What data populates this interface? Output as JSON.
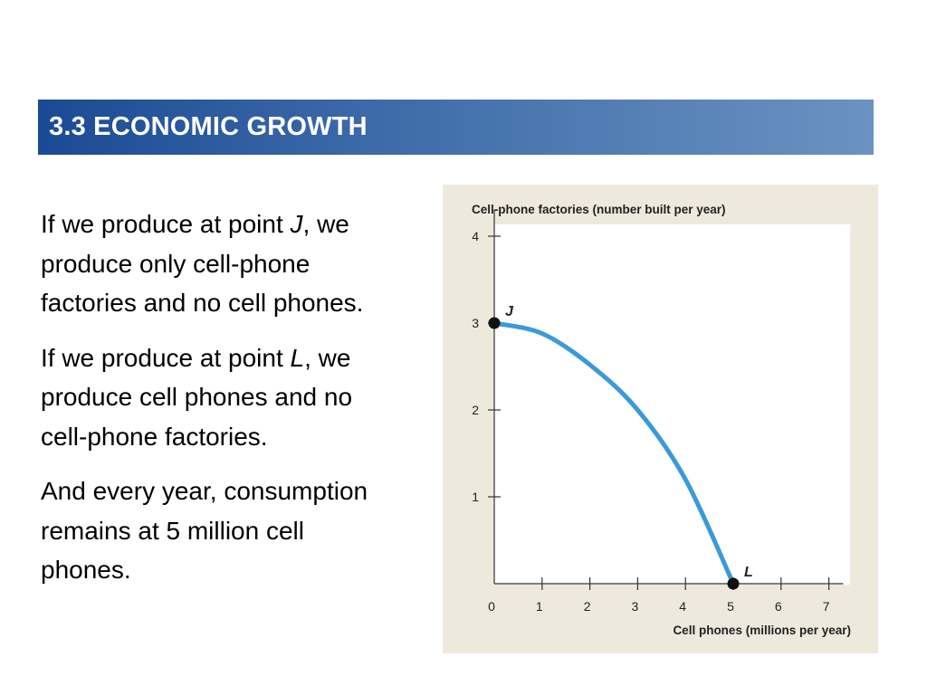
{
  "slide": {
    "title": "3.3 ECONOMIC GROWTH",
    "paragraphs": [
      {
        "before": "If we produce at point ",
        "point": "J",
        "after": ", we produce only cell-phone factories and no cell phones."
      },
      {
        "before": "If we produce at point ",
        "point": "L",
        "after": ", we produce cell phones and no cell-phone factories."
      },
      {
        "before": "And every year, consumption remains at 5 million cell phones.",
        "point": "",
        "after": ""
      }
    ],
    "colors": {
      "title_bar_start": "#1a4a94",
      "title_bar_end": "#6a93c2",
      "curve": "#3a9ad9",
      "panel": "#ede9dd"
    }
  },
  "chart_data": {
    "type": "line",
    "ylabel": "Cell-phone factories (number built per year)",
    "xlabel": "Cell phones (millions per year)",
    "xlim": [
      0,
      7.3
    ],
    "ylim": [
      0,
      4.2
    ],
    "xticks": [
      "0",
      "1",
      "2",
      "3",
      "4",
      "5",
      "6",
      "7"
    ],
    "yticks": [
      "1",
      "2",
      "3",
      "4"
    ],
    "series": [
      {
        "values": [
          {
            "x": 0,
            "y": 3
          },
          {
            "x": 1,
            "y": 2.88
          },
          {
            "x": 2,
            "y": 2.52
          },
          {
            "x": 3,
            "y": 2.0
          },
          {
            "x": 4,
            "y": 1.2
          },
          {
            "x": 5,
            "y": 0
          }
        ]
      }
    ],
    "points": [
      {
        "label": "J",
        "x": 0,
        "y": 3
      },
      {
        "label": "L",
        "x": 5,
        "y": 0
      }
    ]
  }
}
